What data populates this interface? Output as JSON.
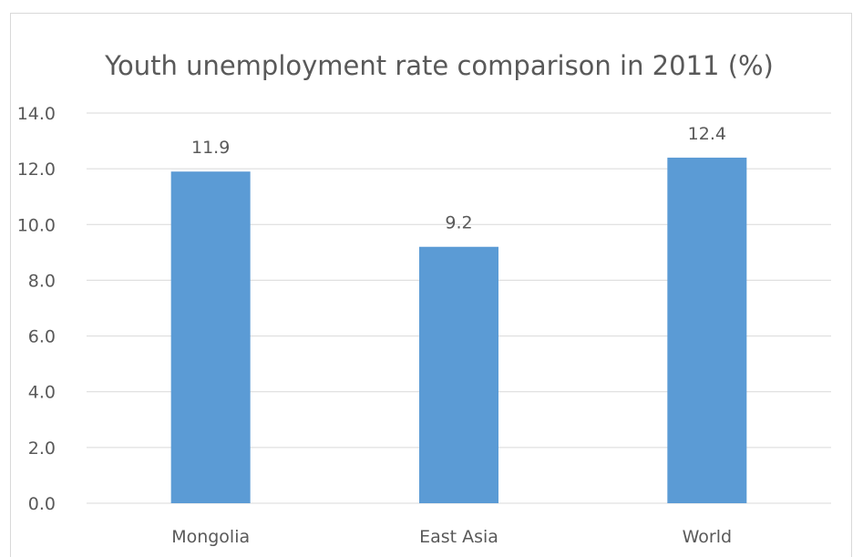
{
  "chart_data": {
    "type": "bar",
    "title": "Youth unemployment rate comparison in 2011 (%)",
    "xlabel": "",
    "ylabel": "",
    "categories": [
      "Mongolia",
      "East Asia",
      "World"
    ],
    "values": [
      11.9,
      9.2,
      12.4
    ],
    "data_labels": [
      "11.9",
      "9.2",
      "12.4"
    ],
    "ylim": [
      0,
      14
    ],
    "yticks": [
      0,
      2,
      4,
      6,
      8,
      10,
      12,
      14
    ],
    "ytick_labels": [
      "0.0",
      "2.0",
      "4.0",
      "6.0",
      "8.0",
      "10.0",
      "12.0",
      "14.0"
    ],
    "grid": true,
    "legend": "none",
    "colors": {
      "bar": "#5b9bd5",
      "grid": "#d9d9d9",
      "text": "#595959",
      "title": "#595959"
    }
  }
}
